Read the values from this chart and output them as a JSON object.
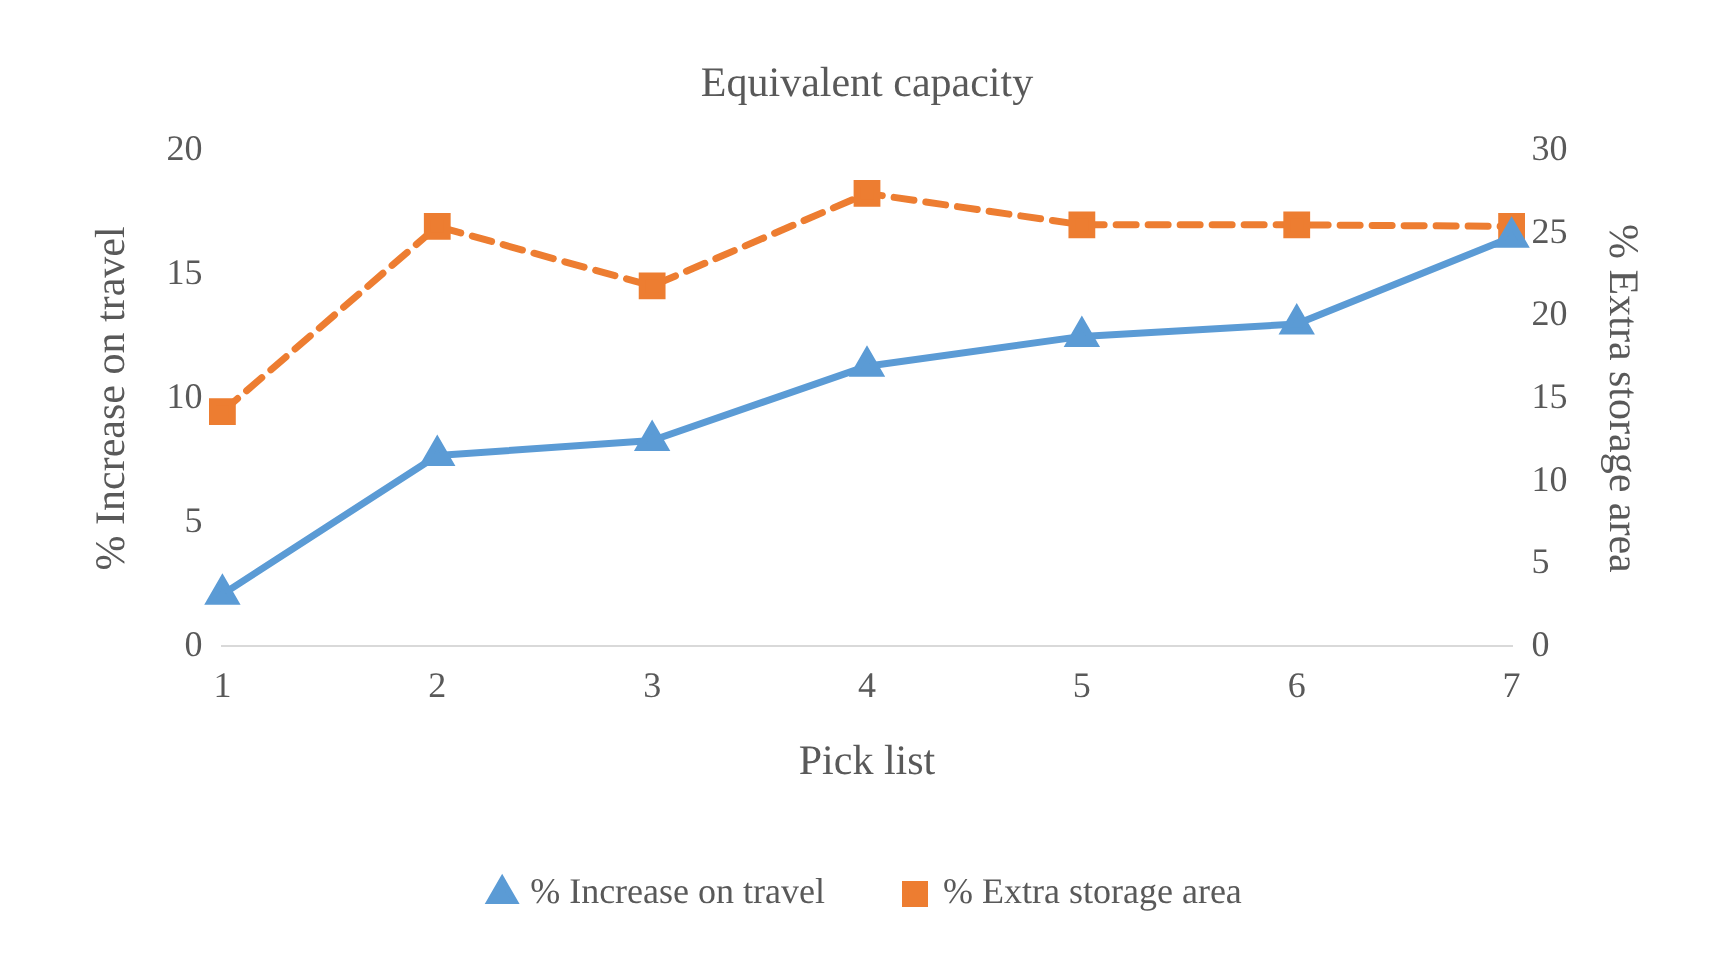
{
  "chart_data": {
    "type": "line",
    "title": "Equivalent capacity",
    "xlabel": "Pick list",
    "ylabel": "% Increase on travel",
    "y2label": "% Extra storage area",
    "categories": [
      "1",
      "2",
      "3",
      "4",
      "5",
      "6",
      "7"
    ],
    "series": [
      {
        "name": "% Increase on travel",
        "color": "#5b9bd5",
        "marker": "triangle",
        "line_style": "solid",
        "values": [
          2.1,
          7.7,
          8.3,
          11.3,
          12.5,
          13.0,
          16.5
        ]
      },
      {
        "name": "% Extra storage area",
        "color": "#ed7d31",
        "marker": "square",
        "line_style": "dashed",
        "axis": "y2",
        "values": [
          14.2,
          25.4,
          21.8,
          27.4,
          25.5,
          25.5,
          25.4
        ]
      }
    ],
    "ylim": [
      0,
      20
    ],
    "yticks": [
      0,
      5,
      10,
      15,
      20
    ],
    "y2lim": [
      0,
      30
    ],
    "y2ticks": [
      0,
      5,
      10,
      15,
      20,
      25,
      30
    ],
    "grid": false,
    "legend": "bottom"
  }
}
